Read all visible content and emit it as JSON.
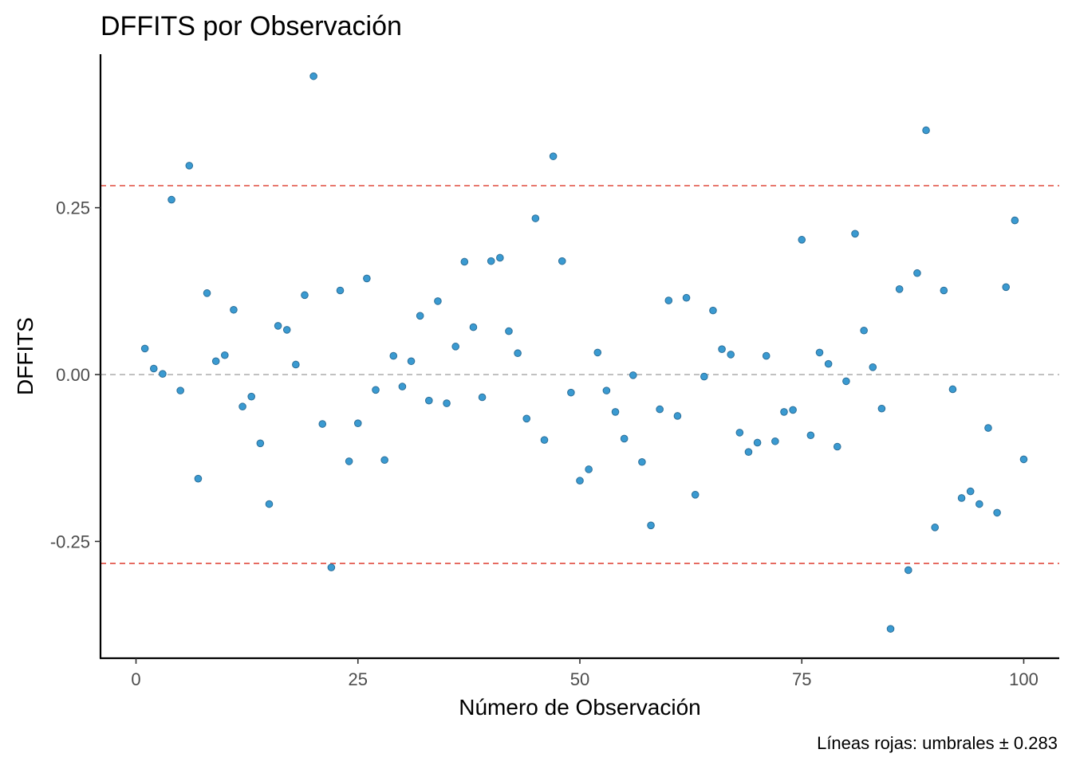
{
  "chart_data": {
    "type": "scatter",
    "title": "DFFITS por Observación",
    "xlabel": "Número de Observación",
    "ylabel": "DFFITS",
    "caption": "Líneas rojas: umbrales ± 0.283",
    "xlim": [
      -4,
      104
    ],
    "ylim": [
      -0.425,
      0.48
    ],
    "x_ticks": [
      0,
      25,
      50,
      75,
      100
    ],
    "x_tick_labels": [
      "0",
      "25",
      "50",
      "75",
      "100"
    ],
    "y_ticks": [
      -0.25,
      0,
      0.25
    ],
    "y_tick_labels": [
      "-0.25",
      "0.00",
      "0.25"
    ],
    "threshold": 0.283,
    "reference_lines": [
      {
        "y": 0.283,
        "color": "#e04b3f",
        "style": "dashed"
      },
      {
        "y": -0.283,
        "color": "#e04b3f",
        "style": "dashed"
      },
      {
        "y": 0,
        "color": "#b3b3b3",
        "style": "dashed"
      }
    ],
    "point_color": "#3a9ad1",
    "point_stroke": "#2c6f99",
    "grid": false,
    "x": [
      1,
      2,
      3,
      4,
      5,
      6,
      7,
      8,
      9,
      10,
      11,
      12,
      13,
      14,
      15,
      16,
      17,
      18,
      19,
      20,
      21,
      22,
      23,
      24,
      25,
      26,
      27,
      28,
      29,
      30,
      31,
      32,
      33,
      34,
      35,
      36,
      37,
      38,
      39,
      40,
      41,
      42,
      43,
      44,
      45,
      46,
      47,
      48,
      49,
      50,
      51,
      52,
      53,
      54,
      55,
      56,
      57,
      58,
      59,
      60,
      61,
      62,
      63,
      64,
      65,
      66,
      67,
      68,
      69,
      70,
      71,
      72,
      73,
      74,
      75,
      76,
      77,
      78,
      79,
      80,
      81,
      82,
      83,
      84,
      85,
      86,
      87,
      88,
      89,
      90,
      91,
      92,
      93,
      94,
      95,
      96,
      97,
      98,
      99,
      100
    ],
    "y": [
      0.039,
      0.009,
      0.001,
      0.262,
      -0.024,
      0.313,
      -0.156,
      0.122,
      0.02,
      0.029,
      0.097,
      -0.048,
      -0.033,
      -0.103,
      -0.194,
      0.073,
      0.067,
      0.015,
      0.119,
      0.447,
      -0.074,
      -0.289,
      0.126,
      -0.13,
      -0.073,
      0.144,
      -0.023,
      -0.128,
      0.028,
      -0.018,
      0.02,
      0.088,
      -0.039,
      0.11,
      -0.043,
      0.042,
      0.169,
      0.071,
      -0.034,
      0.17,
      0.175,
      0.065,
      0.032,
      -0.066,
      0.234,
      -0.098,
      0.327,
      0.17,
      -0.027,
      -0.159,
      -0.142,
      0.033,
      -0.024,
      -0.056,
      -0.096,
      -0.001,
      -0.131,
      -0.226,
      -0.052,
      0.111,
      -0.062,
      0.115,
      -0.18,
      -0.003,
      0.096,
      0.038,
      0.03,
      -0.087,
      -0.116,
      -0.102,
      0.028,
      -0.1,
      -0.056,
      -0.053,
      0.202,
      -0.091,
      0.033,
      0.016,
      -0.108,
      -0.01,
      0.211,
      0.066,
      0.011,
      -0.051,
      -0.381,
      0.128,
      -0.293,
      0.152,
      0.366,
      -0.229,
      0.126,
      -0.022,
      -0.185,
      -0.175,
      -0.194,
      -0.08,
      -0.207,
      0.131,
      0.231,
      -0.127
    ]
  }
}
